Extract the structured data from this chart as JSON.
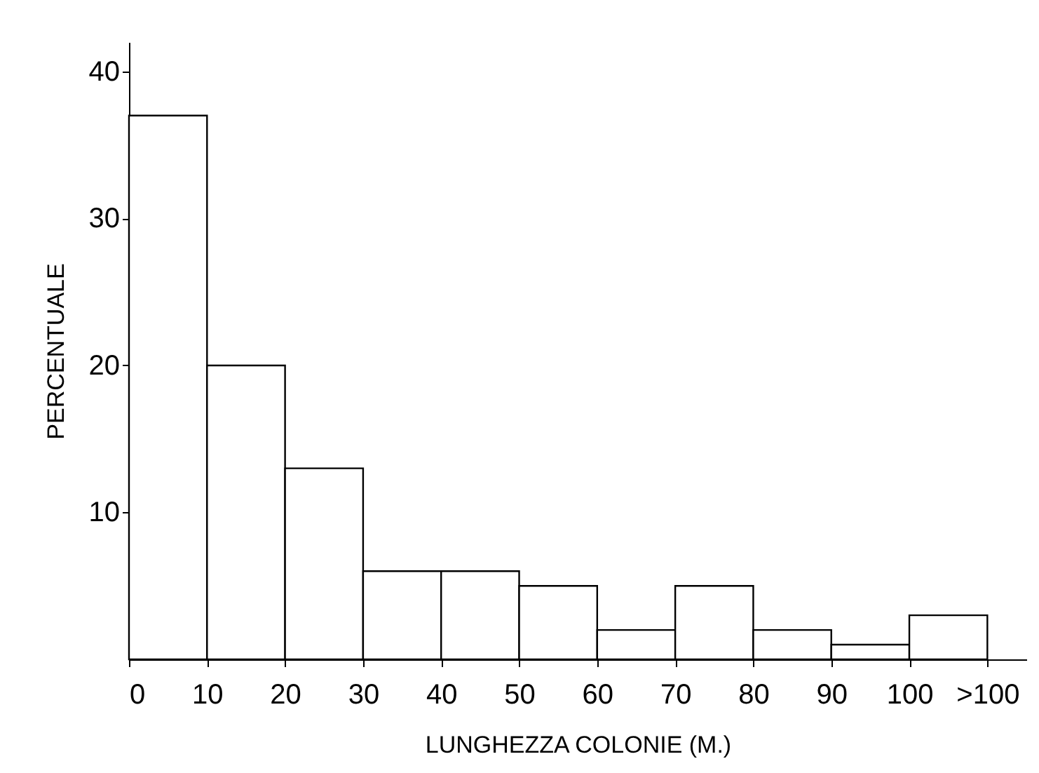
{
  "chart_data": {
    "type": "histogram",
    "xlabel": "LUNGHEZZA COLONIE (M.)",
    "ylabel": "PERCENTUALE",
    "bins": [
      0,
      10,
      20,
      30,
      40,
      50,
      60,
      70,
      80,
      90,
      100,
      110
    ],
    "values": [
      37,
      20,
      13,
      6,
      6,
      5,
      2,
      5,
      2,
      1,
      3
    ],
    "color": "#ffffff",
    "xlim": [
      0,
      115
    ],
    "xticks": [
      0,
      10,
      20,
      30,
      40,
      50,
      60,
      70,
      80,
      90,
      100,
      {
        "value": 110,
        "label": ">100"
      }
    ],
    "ylim": [
      0,
      42
    ],
    "yticks": [
      10,
      20,
      30,
      40
    ]
  }
}
